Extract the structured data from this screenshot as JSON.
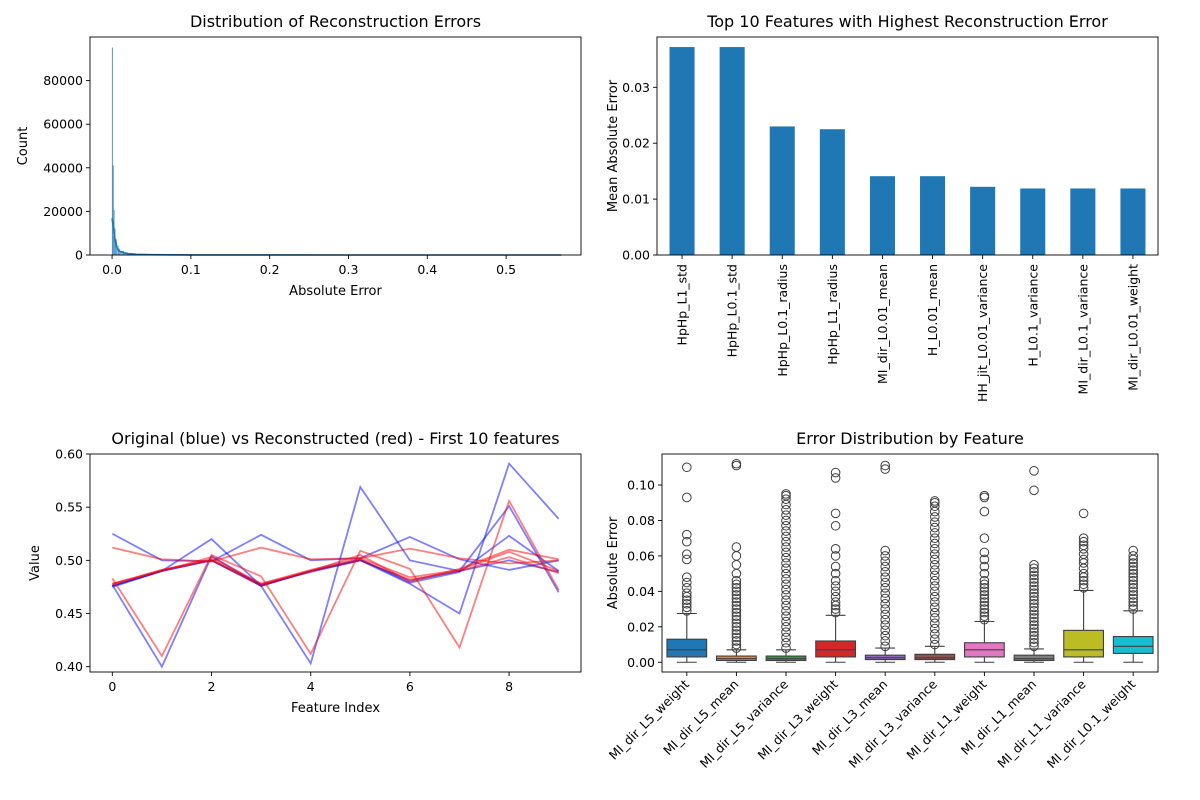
{
  "chart_data": [
    {
      "type": "histogram",
      "title": "Distribution of Reconstruction Errors",
      "xlabel": "Absolute Error",
      "ylabel": "Count",
      "xlim": [
        -0.028,
        0.595
      ],
      "ylim": [
        0,
        100000
      ],
      "xticks": [
        0.0,
        0.1,
        0.2,
        0.3,
        0.4,
        0.5
      ],
      "xtick_labels": [
        "0.0",
        "0.1",
        "0.2",
        "0.3",
        "0.4",
        "0.5"
      ],
      "yticks": [
        0,
        20000,
        40000,
        60000,
        80000
      ],
      "ytick_labels": [
        "0",
        "20000",
        "40000",
        "60000",
        "80000"
      ],
      "bins": {
        "x": [
          0.0,
          0.001,
          0.002,
          0.003,
          0.004,
          0.006,
          0.008,
          0.01,
          0.015,
          0.02,
          0.03,
          0.05,
          0.1,
          0.2,
          0.57
        ],
        "counts": [
          95000,
          41000,
          20500,
          12000,
          7000,
          4200,
          2800,
          1800,
          1100,
          700,
          380,
          180,
          80,
          30,
          10
        ]
      },
      "kde": {
        "x": [
          0.0,
          0.002,
          0.004,
          0.006,
          0.008,
          0.01,
          0.015,
          0.02,
          0.03,
          0.05,
          0.1,
          0.2,
          0.3,
          0.57
        ],
        "y": [
          16800,
          12000,
          6500,
          3500,
          2200,
          1600,
          1000,
          650,
          350,
          150,
          40,
          10,
          5,
          0
        ]
      },
      "color": "#1f77b4"
    },
    {
      "type": "bar",
      "title": "Top 10 Features with Highest Reconstruction Error",
      "xlabel": "",
      "ylabel": "Mean Absolute Error",
      "ylim": [
        0,
        0.039
      ],
      "yticks": [
        0.0,
        0.01,
        0.02,
        0.03
      ],
      "ytick_labels": [
        "0.00",
        "0.01",
        "0.02",
        "0.03"
      ],
      "categories": [
        "HpHp_L1_std",
        "HpHp_L0.1_std",
        "HpHp_L0.1_radius",
        "HpHp_L1_radius",
        "MI_dir_L0.01_mean",
        "H_L0.01_mean",
        "HH_jit_L0.01_variance",
        "H_L0.1_variance",
        "MI_dir_L0.1_variance",
        "MI_dir_L0.01_weight"
      ],
      "values": [
        0.0372,
        0.0372,
        0.023,
        0.0225,
        0.0141,
        0.0141,
        0.0122,
        0.0119,
        0.0119,
        0.0119
      ],
      "color": "#1f77b4"
    },
    {
      "type": "line",
      "title": "Original (blue) vs Reconstructed (red) - First 10 features",
      "xlabel": "Feature Index",
      "ylabel": "Value",
      "xlim": [
        -0.45,
        9.45
      ],
      "ylim": [
        0.395,
        0.6
      ],
      "xticks": [
        0,
        2,
        4,
        6,
        8
      ],
      "xtick_labels": [
        "0",
        "2",
        "4",
        "6",
        "8"
      ],
      "yticks": [
        0.4,
        0.45,
        0.5,
        0.55,
        0.6
      ],
      "ytick_labels": [
        "0.40",
        "0.45",
        "0.50",
        "0.55",
        "0.60"
      ],
      "x": [
        0,
        1,
        2,
        3,
        4,
        5,
        6,
        7,
        8,
        9
      ],
      "series": [
        {
          "color": "#0000ff",
          "values": [
            0.525,
            0.5,
            0.499,
            0.524,
            0.5,
            0.502,
            0.522,
            0.501,
            0.491,
            0.5
          ]
        },
        {
          "color": "#0000ff",
          "values": [
            0.476,
            0.49,
            0.52,
            0.476,
            0.49,
            0.5,
            0.478,
            0.45,
            0.591,
            0.539
          ]
        },
        {
          "color": "#0000ff",
          "values": [
            0.477,
            0.4,
            0.504,
            0.476,
            0.403,
            0.569,
            0.5,
            0.49,
            0.551,
            0.47
          ]
        },
        {
          "color": "#0000ff",
          "values": [
            0.475,
            0.49,
            0.5,
            0.477,
            0.489,
            0.5,
            0.481,
            0.49,
            0.5,
            0.489
          ]
        },
        {
          "color": "#0000ff",
          "values": [
            0.476,
            0.49,
            0.5,
            0.476,
            0.49,
            0.501,
            0.479,
            0.489,
            0.523,
            0.49
          ]
        },
        {
          "color": "#ff0000",
          "values": [
            0.512,
            0.501,
            0.499,
            0.512,
            0.501,
            0.502,
            0.511,
            0.502,
            0.497,
            0.5
          ]
        },
        {
          "color": "#ff0000",
          "values": [
            0.478,
            0.49,
            0.503,
            0.478,
            0.49,
            0.505,
            0.48,
            0.492,
            0.51,
            0.501
          ]
        },
        {
          "color": "#ff0000",
          "values": [
            0.483,
            0.41,
            0.505,
            0.485,
            0.412,
            0.509,
            0.492,
            0.418,
            0.556,
            0.472
          ]
        },
        {
          "color": "#ff0000",
          "values": [
            0.477,
            0.491,
            0.5,
            0.476,
            0.49,
            0.5,
            0.482,
            0.49,
            0.503,
            0.488
          ]
        },
        {
          "color": "#ff0000",
          "values": [
            0.478,
            0.491,
            0.501,
            0.478,
            0.491,
            0.502,
            0.484,
            0.491,
            0.508,
            0.49
          ]
        }
      ]
    },
    {
      "type": "box",
      "title": "Error Distribution by Feature",
      "xlabel": "",
      "ylabel": "Absolute Error",
      "ylim": [
        -0.0055,
        0.1175
      ],
      "yticks": [
        0.0,
        0.02,
        0.04,
        0.06,
        0.08,
        0.1
      ],
      "ytick_labels": [
        "0.00",
        "0.02",
        "0.04",
        "0.06",
        "0.08",
        "0.10"
      ],
      "categories": [
        "MI_dir_L5_weight",
        "MI_dir_L5_mean",
        "MI_dir_L5_variance",
        "MI_dir_L3_weight",
        "MI_dir_L3_mean",
        "MI_dir_L3_variance",
        "MI_dir_L1_weight",
        "MI_dir_L1_mean",
        "MI_dir_L1_variance",
        "MI_dir_L0.1_weight"
      ],
      "boxes": [
        {
          "q1": 0.003,
          "median": 0.007,
          "q3": 0.013,
          "whislo": 0.0,
          "whishi": 0.0275,
          "color": "#1f77b4",
          "outliers": [
            0.029,
            0.031,
            0.033,
            0.035,
            0.037,
            0.039,
            0.042,
            0.045,
            0.048,
            0.058,
            0.061,
            0.068,
            0.072,
            0.093,
            0.11
          ]
        },
        {
          "q1": 0.001,
          "median": 0.002,
          "q3": 0.0035,
          "whislo": 0.0,
          "whishi": 0.007,
          "color": "#ff7f0e",
          "outliers": [
            0.008,
            0.01,
            0.012,
            0.014,
            0.016,
            0.018,
            0.02,
            0.022,
            0.024,
            0.026,
            0.028,
            0.03,
            0.032,
            0.034,
            0.036,
            0.038,
            0.04,
            0.042,
            0.044,
            0.046,
            0.05,
            0.055,
            0.06,
            0.065,
            0.111,
            0.112
          ]
        },
        {
          "q1": 0.001,
          "median": 0.002,
          "q3": 0.0035,
          "whislo": 0.0,
          "whishi": 0.007,
          "color": "#2ca02c",
          "outliers": [
            0.008,
            0.011,
            0.014,
            0.017,
            0.02,
            0.023,
            0.026,
            0.029,
            0.032,
            0.035,
            0.038,
            0.041,
            0.044,
            0.047,
            0.05,
            0.053,
            0.056,
            0.059,
            0.062,
            0.065,
            0.068,
            0.071,
            0.074,
            0.077,
            0.08,
            0.083,
            0.086,
            0.089,
            0.092,
            0.094,
            0.095
          ]
        },
        {
          "q1": 0.003,
          "median": 0.007,
          "q3": 0.012,
          "whislo": 0.0,
          "whishi": 0.0265,
          "color": "#d62728",
          "outliers": [
            0.028,
            0.03,
            0.032,
            0.034,
            0.037,
            0.04,
            0.043,
            0.046,
            0.05,
            0.054,
            0.06,
            0.064,
            0.077,
            0.084,
            0.104,
            0.107
          ]
        },
        {
          "q1": 0.0015,
          "median": 0.0025,
          "q3": 0.004,
          "whislo": 0.0,
          "whishi": 0.008,
          "color": "#9467bd",
          "outliers": [
            0.009,
            0.012,
            0.015,
            0.018,
            0.021,
            0.024,
            0.027,
            0.03,
            0.033,
            0.036,
            0.039,
            0.042,
            0.045,
            0.048,
            0.051,
            0.054,
            0.057,
            0.06,
            0.063,
            0.109,
            0.111
          ]
        },
        {
          "q1": 0.0015,
          "median": 0.0025,
          "q3": 0.0045,
          "whislo": 0.0,
          "whishi": 0.009,
          "color": "#8c564b",
          "outliers": [
            0.01,
            0.013,
            0.016,
            0.019,
            0.022,
            0.025,
            0.028,
            0.031,
            0.034,
            0.037,
            0.04,
            0.043,
            0.046,
            0.049,
            0.052,
            0.055,
            0.058,
            0.061,
            0.064,
            0.067,
            0.07,
            0.073,
            0.076,
            0.079,
            0.082,
            0.085,
            0.088,
            0.09,
            0.091
          ]
        },
        {
          "q1": 0.003,
          "median": 0.007,
          "q3": 0.011,
          "whislo": 0.0,
          "whishi": 0.023,
          "color": "#e377c2",
          "outliers": [
            0.024,
            0.026,
            0.028,
            0.03,
            0.032,
            0.034,
            0.036,
            0.038,
            0.04,
            0.042,
            0.044,
            0.046,
            0.05,
            0.054,
            0.058,
            0.062,
            0.07,
            0.085,
            0.093,
            0.094
          ]
        },
        {
          "q1": 0.001,
          "median": 0.002,
          "q3": 0.004,
          "whislo": 0.0,
          "whishi": 0.0075,
          "color": "#7f7f7f",
          "outliers": [
            0.009,
            0.011,
            0.013,
            0.015,
            0.017,
            0.019,
            0.021,
            0.023,
            0.025,
            0.027,
            0.029,
            0.031,
            0.033,
            0.035,
            0.037,
            0.039,
            0.041,
            0.043,
            0.045,
            0.047,
            0.049,
            0.051,
            0.053,
            0.055,
            0.097,
            0.108
          ]
        },
        {
          "q1": 0.003,
          "median": 0.007,
          "q3": 0.018,
          "whislo": 0.0,
          "whishi": 0.0405,
          "color": "#bcbd22",
          "outliers": [
            0.042,
            0.044,
            0.046,
            0.048,
            0.05,
            0.053,
            0.056,
            0.058,
            0.061,
            0.064,
            0.066,
            0.068,
            0.07,
            0.084
          ]
        },
        {
          "q1": 0.005,
          "median": 0.009,
          "q3": 0.0145,
          "whislo": 0.0,
          "whishi": 0.029,
          "color": "#17becf",
          "outliers": [
            0.03,
            0.032,
            0.034,
            0.036,
            0.038,
            0.04,
            0.042,
            0.044,
            0.046,
            0.048,
            0.05,
            0.052,
            0.054,
            0.056,
            0.058,
            0.06,
            0.063
          ]
        }
      ]
    }
  ]
}
